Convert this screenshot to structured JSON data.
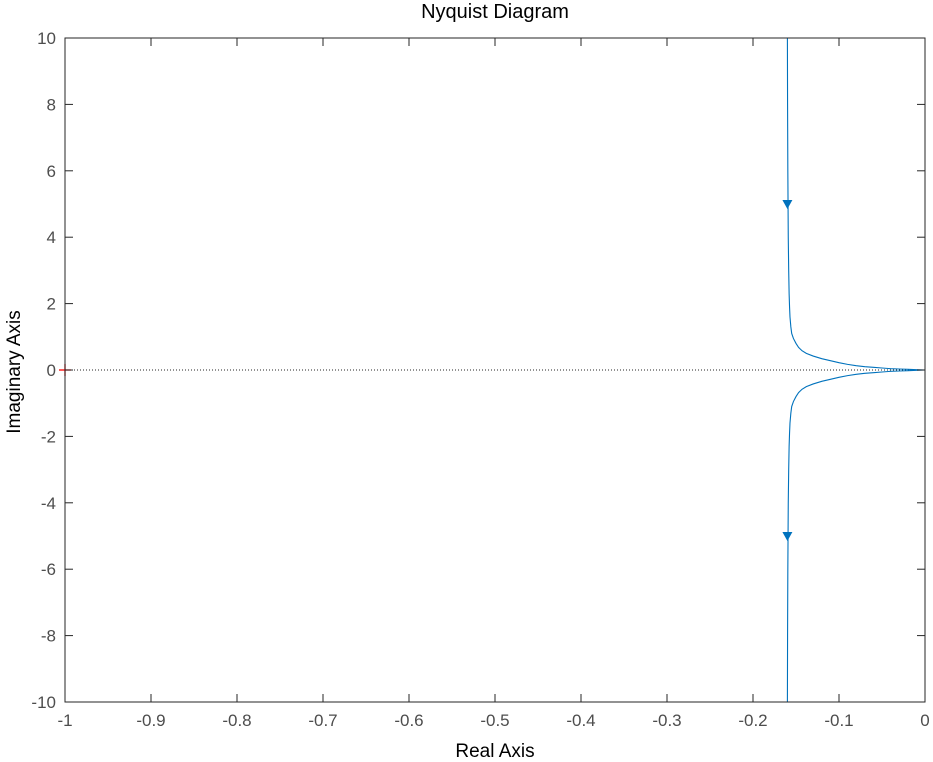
{
  "chart_data": {
    "type": "line",
    "title": "Nyquist Diagram",
    "xlabel": "Real Axis",
    "ylabel": "Imaginary Axis",
    "xlim": [
      -1,
      0
    ],
    "ylim": [
      -10,
      10
    ],
    "xticks": [
      -1,
      -0.9,
      -0.8,
      -0.7,
      -0.6,
      -0.5,
      -0.4,
      -0.3,
      -0.2,
      -0.1,
      0
    ],
    "xtick_labels": [
      "-1",
      "-0.9",
      "-0.8",
      "-0.7",
      "-0.6",
      "-0.5",
      "-0.4",
      "-0.3",
      "-0.2",
      "-0.1",
      "0"
    ],
    "yticks": [
      -10,
      -8,
      -6,
      -4,
      -2,
      0,
      2,
      4,
      6,
      8,
      10
    ],
    "ytick_labels": [
      "-10",
      "-8",
      "-6",
      "-4",
      "-2",
      "0",
      "2",
      "4",
      "6",
      "8",
      "10"
    ],
    "grid": false,
    "series": [
      {
        "color": "#0072BD",
        "x": [
          -0.16,
          -0.1598,
          -0.1595,
          -0.159,
          -0.1585,
          -0.158,
          -0.1575,
          -0.157,
          -0.156,
          -0.155,
          -0.153,
          -0.15,
          -0.147,
          -0.143,
          -0.138,
          -0.13,
          -0.12,
          -0.11,
          -0.1,
          -0.09,
          -0.08,
          -0.07,
          -0.06,
          -0.05,
          -0.04,
          -0.03,
          -0.02,
          -0.01,
          0
        ],
        "y": [
          10,
          8,
          6,
          4,
          3,
          2.3,
          1.9,
          1.6,
          1.3,
          1.1,
          0.95,
          0.8,
          0.68,
          0.58,
          0.5,
          0.42,
          0.34,
          0.28,
          0.22,
          0.17,
          0.13,
          0.1,
          0.08,
          0.06,
          0.04,
          0.03,
          0.02,
          0.01,
          0
        ]
      },
      {
        "color": "#0072BD",
        "x": [
          -0.16,
          -0.1598,
          -0.1595,
          -0.159,
          -0.1585,
          -0.158,
          -0.1575,
          -0.157,
          -0.156,
          -0.155,
          -0.153,
          -0.15,
          -0.147,
          -0.143,
          -0.138,
          -0.13,
          -0.12,
          -0.11,
          -0.1,
          -0.09,
          -0.08,
          -0.07,
          -0.06,
          -0.05,
          -0.04,
          -0.03,
          -0.02,
          -0.01,
          0
        ],
        "y": [
          -10,
          -8,
          -6,
          -4,
          -3,
          -2.3,
          -1.9,
          -1.6,
          -1.3,
          -1.1,
          -0.95,
          -0.8,
          -0.68,
          -0.58,
          -0.5,
          -0.42,
          -0.34,
          -0.28,
          -0.22,
          -0.17,
          -0.13,
          -0.1,
          -0.08,
          -0.06,
          -0.04,
          -0.03,
          -0.02,
          -0.01,
          0
        ]
      }
    ],
    "arrows": [
      {
        "x": -0.16,
        "y": 5,
        "direction": "down"
      },
      {
        "x": -0.16,
        "y": -5,
        "direction": "down"
      }
    ],
    "critical_point": {
      "x": -1,
      "y": 0,
      "color": "#ff0000"
    },
    "zero_line": {
      "y": 0,
      "style": "dotted"
    }
  }
}
